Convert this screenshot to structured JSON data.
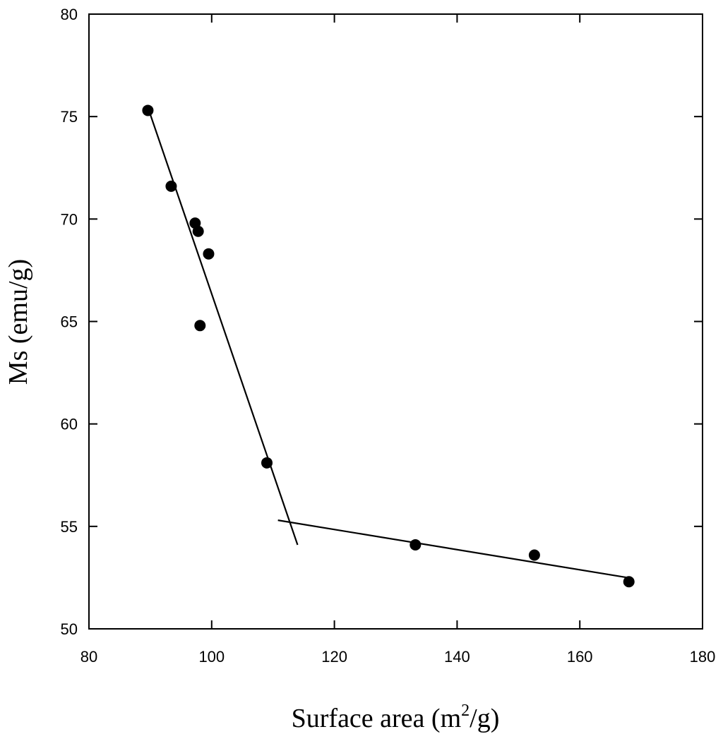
{
  "chart_data": {
    "type": "scatter",
    "title": "",
    "xlabel": {
      "main": "Surface area (m",
      "sup": "2",
      "tail": "/g)"
    },
    "ylabel": "Ms (emu/g)",
    "xlim": [
      80,
      180
    ],
    "ylim": [
      50,
      80
    ],
    "x_ticks": [
      80,
      100,
      120,
      140,
      160,
      180
    ],
    "y_ticks": [
      50,
      55,
      60,
      65,
      70,
      75,
      80
    ],
    "grid": false,
    "legend": "none",
    "marker_color": "#000000",
    "series": [
      {
        "points": [
          {
            "x": 89.6,
            "y": 75.3
          },
          {
            "x": 93.4,
            "y": 71.6
          },
          {
            "x": 97.3,
            "y": 69.8
          },
          {
            "x": 97.8,
            "y": 69.4
          },
          {
            "x": 99.5,
            "y": 68.3
          },
          {
            "x": 98.1,
            "y": 64.8
          },
          {
            "x": 109.0,
            "y": 58.1
          },
          {
            "x": 133.2,
            "y": 54.1
          },
          {
            "x": 152.6,
            "y": 53.6
          },
          {
            "x": 168.0,
            "y": 52.3
          }
        ]
      }
    ],
    "fit_lines": [
      {
        "x1": 90.0,
        "y1": 75.1,
        "x2": 114.0,
        "y2": 54.1
      },
      {
        "x1": 110.8,
        "y1": 55.3,
        "x2": 167.8,
        "y2": 52.5
      }
    ]
  }
}
